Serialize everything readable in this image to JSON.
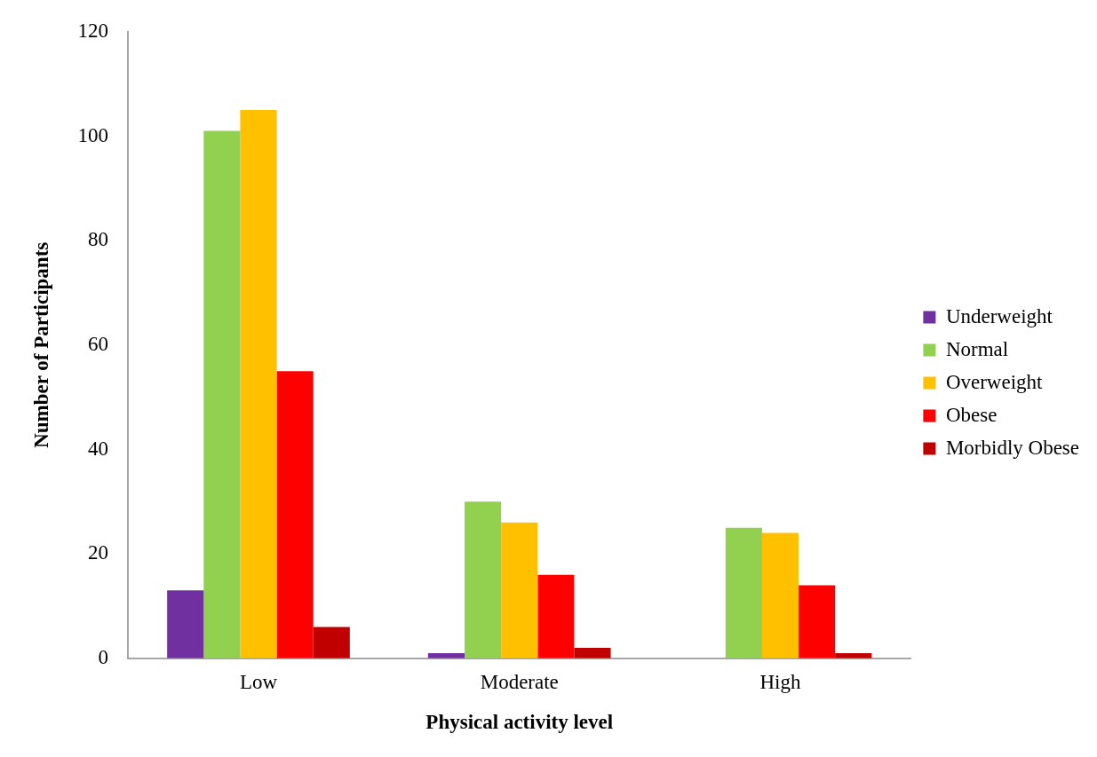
{
  "chart_data": {
    "type": "bar",
    "xlabel": "Physical activity level",
    "ylabel": "Number of Participants",
    "categories": [
      "Low",
      "Moderate",
      "High"
    ],
    "series": [
      {
        "name": "Underweight",
        "color": "#7030a0",
        "values": [
          13,
          1,
          0
        ]
      },
      {
        "name": "Normal",
        "color": "#92d050",
        "values": [
          101,
          30,
          25
        ]
      },
      {
        "name": "Overweight",
        "color": "#ffc000",
        "values": [
          105,
          26,
          24
        ]
      },
      {
        "name": "Obese",
        "color": "#ff0000",
        "values": [
          55,
          16,
          14
        ]
      },
      {
        "name": "Morbidly Obese",
        "color": "#c00000",
        "values": [
          6,
          2,
          1
        ]
      }
    ],
    "ylim": [
      0,
      120
    ],
    "yticks": [
      0,
      20,
      40,
      60,
      80,
      100,
      120
    ],
    "grid": false,
    "legend": "right"
  }
}
